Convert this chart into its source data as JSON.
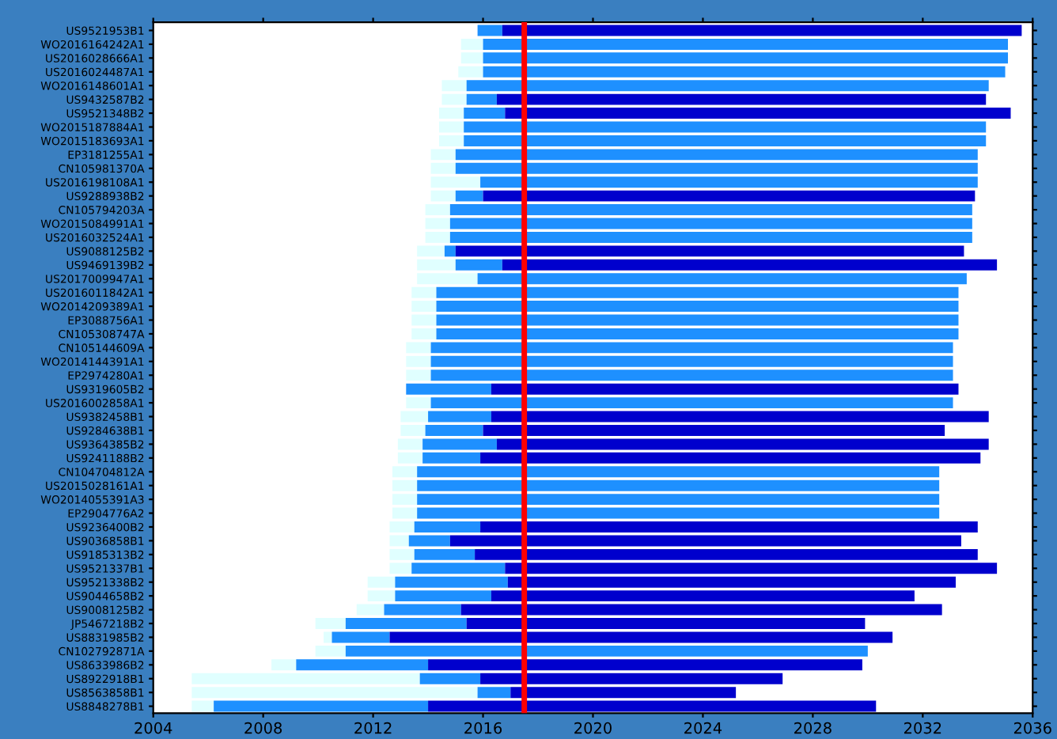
{
  "chart_data": {
    "type": "bar",
    "orientation": "horizontal",
    "categories": [
      "US9521953B1",
      "WO2016164242A1",
      "US2016028666A1",
      "US2016024487A1",
      "WO2016148601A1",
      "US9432587B2",
      "US9521348B2",
      "WO2015187884A1",
      "WO2015183693A1",
      "EP3181255A1",
      "CN105981370A",
      "US2016198108A1",
      "US9288938B2",
      "CN105794203A",
      "WO2015084991A1",
      "US2016032524A1",
      "US9088125B2",
      "US9469139B2",
      "US2017009947A1",
      "US2016011842A1",
      "WO2014209389A1",
      "EP3088756A1",
      "CN105308747A",
      "CN105144609A",
      "WO2014144391A1",
      "EP2974280A1",
      "US9319605B2",
      "US2016002858A1",
      "US9382458B1",
      "US9284638B1",
      "US9364385B2",
      "US9241188B2",
      "CN104704812A",
      "US2015028161A1",
      "WO2014055391A3",
      "EP2904776A2",
      "US9236400B2",
      "US9036858B1",
      "US9185313B2",
      "US9521337B1",
      "US9521338B2",
      "US9044658B2",
      "US9008125B2",
      "JP5467218B2",
      "US8831985B2",
      "CN102792871A",
      "US8633986B2",
      "US8922918B1",
      "US8563858B1",
      "US8848278B1"
    ],
    "series": [
      {
        "color": "#e0ffff",
        "base": [
          null,
          2015.2,
          2015.2,
          2015.1,
          2014.5,
          2014.5,
          2014.4,
          2014.4,
          2014.4,
          2014.1,
          2014.1,
          2014.1,
          2014.1,
          2013.9,
          2013.9,
          2013.9,
          2013.6,
          2013.6,
          2013.6,
          2013.4,
          2013.4,
          2013.4,
          2013.4,
          2013.2,
          2013.2,
          2013.2,
          null,
          2013.2,
          2013.0,
          2013.0,
          2012.9,
          2012.9,
          2012.7,
          2012.7,
          2012.7,
          2012.7,
          2012.6,
          2012.6,
          2012.6,
          2012.6,
          2011.8,
          2011.8,
          2011.4,
          2009.9,
          2010.2,
          2009.9,
          2008.3,
          2005.4,
          2005.4,
          2005.4
        ],
        "values": [
          null,
          0.8,
          0.8,
          0.9,
          0.9,
          0.9,
          0.9,
          0.9,
          0.9,
          0.9,
          0.9,
          1.8,
          0.9,
          0.9,
          0.9,
          0.9,
          1.0,
          1.4,
          2.2,
          0.9,
          0.9,
          0.9,
          0.9,
          0.9,
          0.9,
          0.9,
          null,
          0.9,
          1.0,
          0.9,
          0.9,
          0.9,
          0.9,
          0.9,
          0.9,
          0.9,
          0.9,
          0.7,
          0.9,
          0.8,
          1.0,
          1.0,
          1.0,
          1.1,
          0.3,
          1.1,
          0.9,
          8.3,
          10.4,
          0.8
        ]
      },
      {
        "color": "#1e90ff",
        "base": [
          2015.8,
          2016.0,
          2016.0,
          2016.0,
          2015.4,
          2015.4,
          2015.3,
          2015.3,
          2015.3,
          2015.0,
          2015.0,
          2015.9,
          2015.0,
          2014.8,
          2014.8,
          2014.8,
          2014.6,
          2015.0,
          2015.8,
          2014.3,
          2014.3,
          2014.3,
          2014.3,
          2014.1,
          2014.1,
          2014.1,
          2013.2,
          2014.1,
          2014.0,
          2013.9,
          2013.8,
          2013.8,
          2013.6,
          2013.6,
          2013.6,
          2013.6,
          2013.5,
          2013.3,
          2013.5,
          2013.4,
          2012.8,
          2012.8,
          2012.4,
          2011.0,
          2010.5,
          2011.0,
          2009.2,
          2013.7,
          2015.8,
          2006.2
        ],
        "values": [
          0.9,
          19.1,
          19.1,
          19.0,
          19.0,
          1.1,
          1.5,
          19.0,
          19.0,
          19.0,
          19.0,
          18.1,
          1.0,
          19.0,
          19.0,
          19.0,
          0.4,
          1.7,
          17.8,
          19.0,
          19.0,
          19.0,
          19.0,
          19.0,
          19.0,
          19.0,
          3.1,
          19.0,
          2.3,
          2.1,
          2.7,
          2.1,
          19.0,
          19.0,
          19.0,
          19.0,
          2.4,
          1.5,
          2.2,
          3.4,
          4.1,
          3.5,
          2.8,
          4.4,
          2.1,
          19.0,
          4.8,
          2.2,
          1.2,
          7.8
        ]
      },
      {
        "color": "#0000cd",
        "base": [
          2016.7,
          null,
          null,
          null,
          null,
          2016.5,
          2016.8,
          null,
          null,
          null,
          null,
          null,
          2016.0,
          null,
          null,
          null,
          2015.0,
          2016.7,
          null,
          null,
          null,
          null,
          null,
          null,
          null,
          null,
          2016.3,
          null,
          2016.3,
          2016.0,
          2016.5,
          2015.9,
          null,
          null,
          null,
          null,
          2015.9,
          2014.8,
          2015.7,
          2016.8,
          2016.9,
          2016.3,
          2015.2,
          2015.4,
          2012.6,
          null,
          2014.0,
          2015.9,
          2017.0,
          2014.0
        ],
        "values": [
          18.9,
          null,
          null,
          null,
          null,
          17.8,
          18.4,
          null,
          null,
          null,
          null,
          null,
          17.9,
          null,
          null,
          null,
          18.5,
          18.0,
          null,
          null,
          null,
          null,
          null,
          null,
          null,
          null,
          17.0,
          null,
          18.1,
          16.8,
          17.9,
          18.2,
          null,
          null,
          null,
          null,
          18.1,
          18.6,
          18.3,
          17.9,
          16.3,
          15.4,
          17.5,
          14.5,
          18.3,
          null,
          15.8,
          11.0,
          8.2,
          16.3
        ]
      }
    ],
    "xlim": [
      2004,
      2036
    ],
    "xticks": [
      2004,
      2008,
      2012,
      2016,
      2020,
      2024,
      2028,
      2032,
      2036
    ],
    "ref_lines": [
      {
        "axis": "x",
        "value": 2017.5,
        "color": "#ff0000",
        "line_style": "solid"
      }
    ],
    "grid": false,
    "legend": false
  }
}
